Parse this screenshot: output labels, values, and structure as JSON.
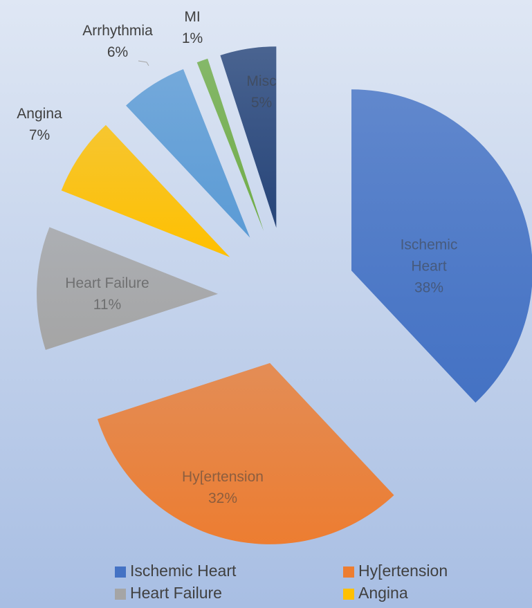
{
  "chart_data": {
    "type": "pie",
    "categories": [
      "Ischemic Heart",
      "Hy[ertension",
      "Heart Failure",
      "Angina",
      "Arrhythmia",
      "MI",
      "Misc"
    ],
    "values": [
      38,
      32,
      11,
      7,
      6,
      1,
      5
    ],
    "value_labels": [
      "38%",
      "32%",
      "11%",
      "7%",
      "6%",
      "1%",
      "5%"
    ],
    "colors": [
      "#4472c4",
      "#ed7d31",
      "#a5a5a5",
      "#ffc000",
      "#5b9bd5",
      "#70ad47",
      "#264478"
    ],
    "exploded": true,
    "legend": "bottom"
  }
}
